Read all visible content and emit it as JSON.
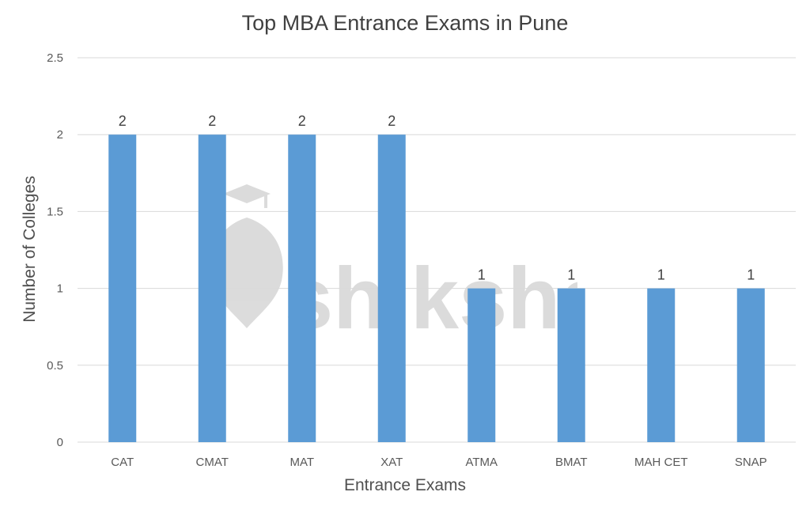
{
  "chart_data": {
    "type": "bar",
    "title": "Top MBA Entrance Exams in Pune",
    "xlabel": "Entrance Exams",
    "ylabel": "Number of Colleges",
    "categories": [
      "CAT",
      "CMAT",
      "MAT",
      "XAT",
      "ATMA",
      "BMAT",
      "MAH CET",
      "SNAP"
    ],
    "values": [
      2,
      2,
      2,
      2,
      1,
      1,
      1,
      1
    ],
    "data_labels": [
      "2",
      "2",
      "2",
      "2",
      "1",
      "1",
      "1",
      "1"
    ],
    "ylim": [
      0,
      2.5
    ],
    "yticks": [
      "0",
      "0.5",
      "1",
      "1.5",
      "2",
      "2.5"
    ],
    "ytick_values": [
      0,
      0.5,
      1,
      1.5,
      2,
      2.5
    ],
    "grid": true,
    "legend": "none",
    "colors": {
      "bar": "#5b9bd5",
      "grid": "#d9d9d9",
      "text": "#404040"
    }
  },
  "watermark": {
    "text": "shiksha",
    "color": "#bfbfbf"
  }
}
